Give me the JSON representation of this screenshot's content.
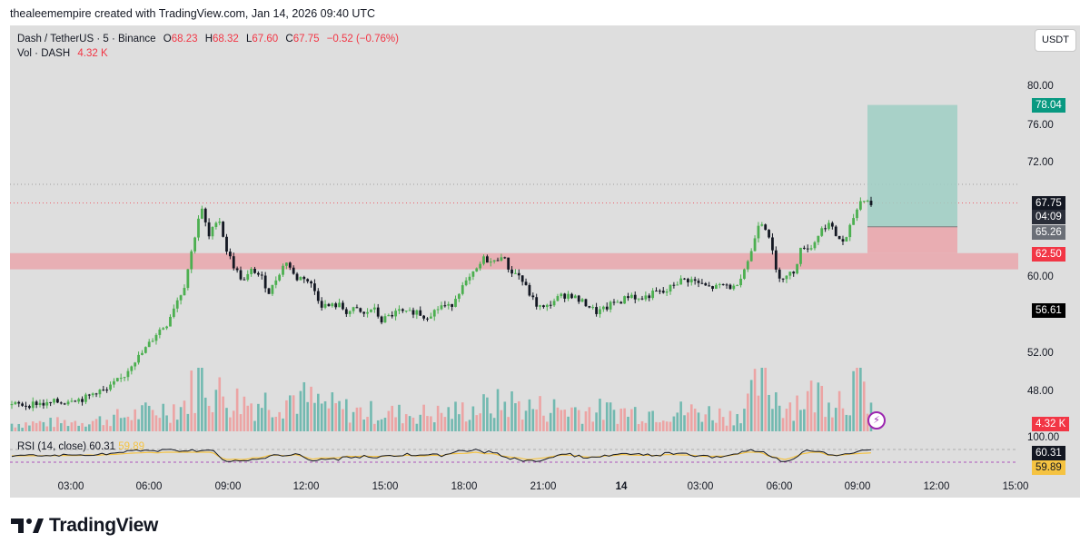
{
  "header": {
    "attribution": "thealeemempire created with TradingView.com, Jan 14, 2026 09:40 UTC"
  },
  "legend": {
    "symbol": "Dash / TetherUS · 5 · Binance",
    "open_label": "O",
    "open": "68.23",
    "high_label": "H",
    "high": "68.32",
    "low_label": "L",
    "low": "67.60",
    "close_label": "C",
    "close": "67.75",
    "change": "−0.52 (−0.76%)",
    "vol_label": "Vol · DASH",
    "vol_value": "4.32 K"
  },
  "currency_button": "USDT",
  "rsi": {
    "legend": "RSI (14, close)",
    "value1": "60.31",
    "value2": "59.89",
    "axis_label": "100.00"
  },
  "price_axis": {
    "labels": [
      "80.00",
      "76.00",
      "72.00",
      "60.00",
      "52.00",
      "48.00"
    ]
  },
  "badges": {
    "target": "78.04",
    "last_price": "67.75",
    "countdown": "04:09",
    "entry": "65.26",
    "stop": "62.50",
    "crosshair": "56.61",
    "volume": "4.32 K",
    "rsi1": "60.31",
    "rsi2": "59.89"
  },
  "time_axis": {
    "labels": [
      "03:00",
      "06:00",
      "09:00",
      "12:00",
      "15:00",
      "18:00",
      "21:00",
      "14",
      "03:00",
      "06:00",
      "09:00",
      "12:00",
      "15:00"
    ]
  },
  "colors": {
    "bull": "#4caf50",
    "bear": "#131722",
    "down": "#f23645",
    "target_zone": "#9fcfc4",
    "stop_zone": "#eaa7ad",
    "rsi_line": "#131722",
    "rsi_band": "#f5c342",
    "badge_green": "#089981",
    "badge_red": "#f23645"
  },
  "footer": {
    "brand": "TradingView"
  },
  "chart_data": {
    "type": "candlestick",
    "title": "Dash / TetherUS · 5 · Binance",
    "ylim": [
      46,
      82
    ],
    "y_ticks": [
      48,
      52,
      60,
      72,
      76,
      80
    ],
    "x_ticks": [
      "03:00",
      "06:00",
      "09:00",
      "12:00",
      "15:00",
      "18:00",
      "21:00",
      "14",
      "03:00",
      "06:00",
      "09:00",
      "12:00",
      "15:00"
    ],
    "price_path": [
      [
        0,
        46.6
      ],
      [
        2,
        46.6
      ],
      [
        3,
        46.8
      ],
      [
        4,
        46.6
      ],
      [
        5,
        46.9
      ],
      [
        6,
        46.8
      ],
      [
        7,
        47.3
      ],
      [
        8,
        47.1
      ],
      [
        9,
        47.5
      ],
      [
        10,
        48.1
      ],
      [
        11,
        48.0
      ],
      [
        12,
        48.9
      ],
      [
        13,
        49.5
      ],
      [
        14,
        51.0
      ],
      [
        15,
        51.8
      ],
      [
        16,
        53.0
      ],
      [
        17,
        54.3
      ],
      [
        18,
        55.0
      ],
      [
        19,
        57.2
      ],
      [
        20,
        58.8
      ],
      [
        21,
        63.0
      ],
      [
        22,
        67.4
      ],
      [
        23,
        64.0
      ],
      [
        24,
        66.6
      ],
      [
        25,
        62.8
      ],
      [
        26,
        60.8
      ],
      [
        27,
        59.5
      ],
      [
        28,
        60.8
      ],
      [
        29,
        60.0
      ],
      [
        30,
        58.3
      ],
      [
        31,
        60.3
      ],
      [
        32,
        61.7
      ],
      [
        33,
        59.8
      ],
      [
        34,
        60.0
      ],
      [
        35,
        59.0
      ],
      [
        36,
        57.1
      ],
      [
        37,
        56.9
      ],
      [
        38,
        57.1
      ],
      [
        39,
        56.3
      ],
      [
        40,
        56.6
      ],
      [
        41,
        56.0
      ],
      [
        42,
        56.8
      ],
      [
        43,
        55.4
      ],
      [
        44,
        55.9
      ],
      [
        45,
        56.4
      ],
      [
        46,
        56.1
      ],
      [
        47,
        56.5
      ],
      [
        48,
        55.8
      ],
      [
        49,
        56.3
      ],
      [
        50,
        57.0
      ],
      [
        51,
        56.8
      ],
      [
        52,
        58.5
      ],
      [
        53,
        59.5
      ],
      [
        54,
        60.6
      ],
      [
        55,
        62.0
      ],
      [
        56,
        61.4
      ],
      [
        57,
        62.4
      ],
      [
        58,
        60.6
      ],
      [
        59,
        60.2
      ],
      [
        60,
        58.6
      ],
      [
        61,
        57.1
      ],
      [
        62,
        56.6
      ],
      [
        63,
        57.5
      ],
      [
        64,
        58.0
      ],
      [
        65,
        58.2
      ],
      [
        66,
        57.5
      ],
      [
        67,
        57.1
      ],
      [
        68,
        56.3
      ],
      [
        69,
        56.6
      ],
      [
        70,
        57.3
      ],
      [
        71,
        57.5
      ],
      [
        72,
        58.2
      ],
      [
        73,
        57.6
      ],
      [
        74,
        58.0
      ],
      [
        75,
        58.4
      ],
      [
        76,
        58.3
      ],
      [
        77,
        59.2
      ],
      [
        78,
        59.7
      ],
      [
        79,
        59.7
      ],
      [
        80,
        59.3
      ],
      [
        81,
        58.9
      ],
      [
        82,
        58.9
      ],
      [
        83,
        59.2
      ],
      [
        84,
        58.8
      ],
      [
        85,
        60.4
      ],
      [
        86,
        62.4
      ],
      [
        87,
        66.1
      ],
      [
        88,
        64.9
      ],
      [
        89,
        60.3
      ],
      [
        90,
        59.9
      ],
      [
        91,
        60.6
      ],
      [
        92,
        63.3
      ],
      [
        93,
        63.0
      ],
      [
        94,
        64.7
      ],
      [
        95,
        65.7
      ],
      [
        96,
        64.2
      ],
      [
        97,
        63.6
      ],
      [
        98,
        66.4
      ],
      [
        99,
        68.4
      ],
      [
        100,
        67.7
      ]
    ],
    "volume_profile": [
      [
        0,
        0.35
      ],
      [
        5,
        0.4
      ],
      [
        10,
        0.5
      ],
      [
        15,
        0.8
      ],
      [
        20,
        1.2
      ],
      [
        21,
        1.9
      ],
      [
        22,
        2.8
      ],
      [
        23,
        2.0
      ],
      [
        25,
        1.5
      ],
      [
        28,
        1.3
      ],
      [
        30,
        1.4
      ],
      [
        33,
        1.6
      ],
      [
        36,
        1.2
      ],
      [
        40,
        0.9
      ],
      [
        45,
        0.8
      ],
      [
        50,
        0.8
      ],
      [
        55,
        1.1
      ],
      [
        58,
        1.3
      ],
      [
        60,
        1.1
      ],
      [
        65,
        1.0
      ],
      [
        70,
        0.9
      ],
      [
        75,
        0.9
      ],
      [
        80,
        0.9
      ],
      [
        84,
        0.7
      ],
      [
        86,
        1.4
      ],
      [
        87,
        2.3
      ],
      [
        88,
        2.0
      ],
      [
        90,
        1.2
      ],
      [
        92,
        1.5
      ],
      [
        95,
        1.8
      ],
      [
        97,
        1.5
      ],
      [
        98,
        2.2
      ],
      [
        99,
        1.9
      ],
      [
        100,
        1.3
      ]
    ],
    "position": {
      "target": 78.04,
      "entry": 65.26,
      "stop": 62.5
    },
    "support_zone": [
      60.8,
      62.5
    ],
    "rsi": {
      "period": 14,
      "source": "close",
      "values": [
        60.31,
        59.89
      ],
      "upper": 100.0
    }
  }
}
